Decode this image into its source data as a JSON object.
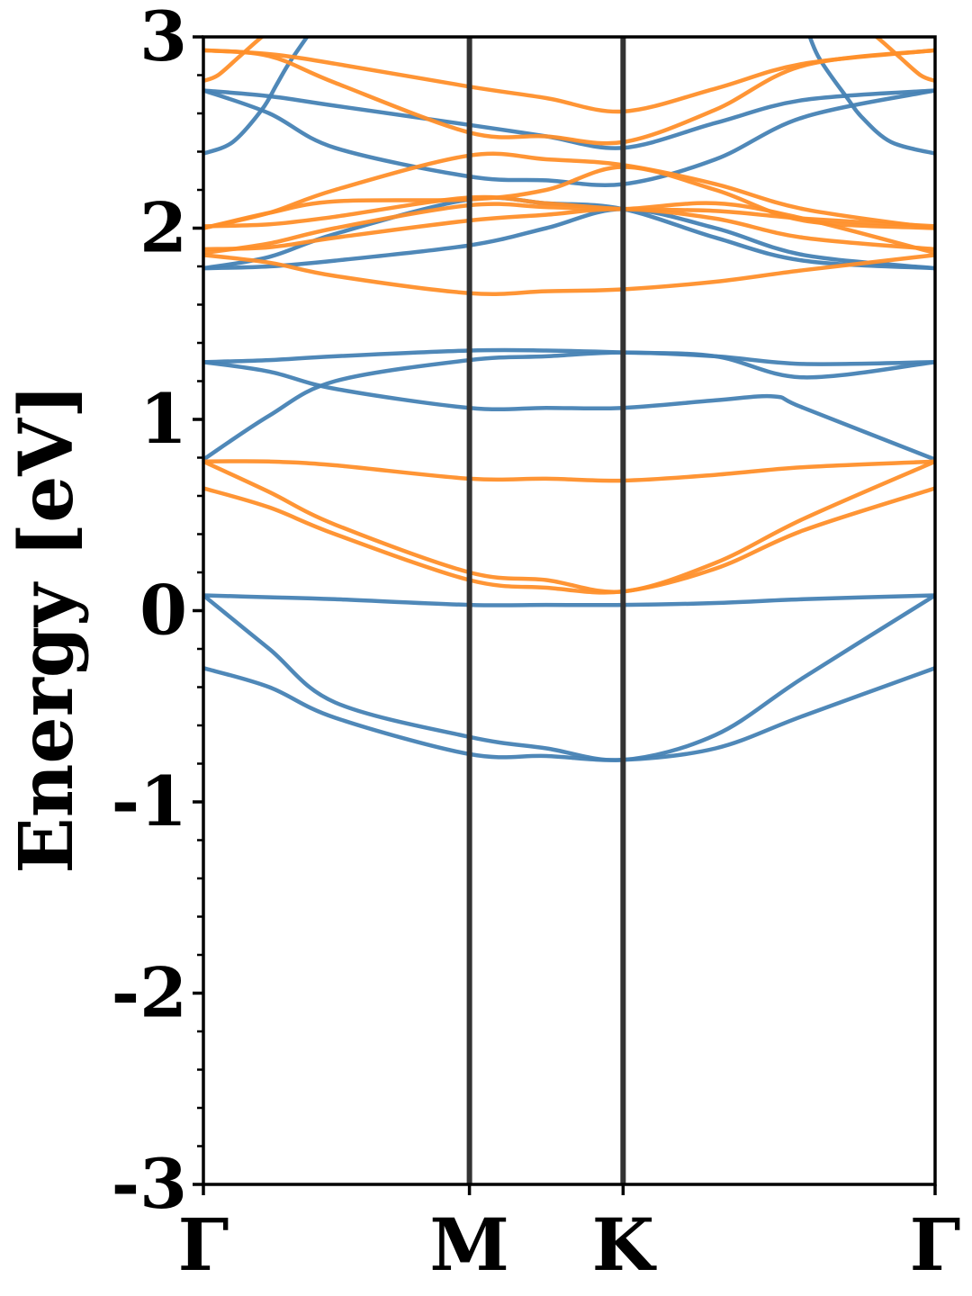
{
  "chart_data": {
    "type": "line",
    "title": "",
    "xlabel": "",
    "ylabel": "Energy [eV]",
    "ylim": [
      -3,
      3
    ],
    "yticks": [
      "-3",
      "-2",
      "-1",
      "0",
      "1",
      "2",
      "3"
    ],
    "x_range": [
      0,
      1
    ],
    "kpoints": [
      {
        "label": "Γ",
        "x": 0
      },
      {
        "label": "M",
        "x": 0.3636
      },
      {
        "label": "K",
        "x": 0.5736
      },
      {
        "label": "Γ",
        "x": 1
      }
    ],
    "colors": {
      "blue": "#4682b4",
      "orange": "#ff8f2a",
      "kline": "#333333"
    },
    "grid": false,
    "series": [
      {
        "color": "blue",
        "x": [
          0,
          0.09,
          0.18,
          0.3636,
          0.4686,
          0.5736,
          0.7,
          0.82,
          1
        ],
        "y": [
          0.08,
          0.07,
          0.06,
          0.03,
          0.03,
          0.03,
          0.04,
          0.06,
          0.08
        ]
      },
      {
        "color": "blue",
        "x": [
          0,
          0.09,
          0.18,
          0.3636,
          0.4686,
          0.5736,
          0.7,
          0.82,
          1
        ],
        "y": [
          0.08,
          -0.2,
          -0.48,
          -0.66,
          -0.72,
          -0.78,
          -0.65,
          -0.35,
          0.08
        ]
      },
      {
        "color": "blue",
        "x": [
          0,
          0.09,
          0.18,
          0.3636,
          0.4686,
          0.5736,
          0.7,
          0.82,
          1
        ],
        "y": [
          -0.3,
          -0.4,
          -0.56,
          -0.75,
          -0.76,
          -0.78,
          -0.72,
          -0.55,
          -0.3
        ]
      },
      {
        "color": "blue",
        "x": [
          0,
          0.09,
          0.18,
          0.3636,
          0.4686,
          0.5736,
          0.7,
          0.82,
          1
        ],
        "y": [
          0.79,
          1.02,
          1.2,
          1.31,
          1.33,
          1.35,
          1.33,
          1.29,
          1.3
        ]
      },
      {
        "color": "blue",
        "x": [
          0,
          0.09,
          0.18,
          0.3636,
          0.4686,
          0.5736,
          0.7,
          0.78,
          0.82,
          1
        ],
        "y": [
          1.3,
          1.25,
          1.16,
          1.06,
          1.06,
          1.06,
          1.1,
          1.12,
          1.06,
          0.79
        ]
      },
      {
        "color": "blue",
        "x": [
          0,
          0.09,
          0.18,
          0.3636,
          0.4686,
          0.5736,
          0.7,
          0.82,
          1
        ],
        "y": [
          1.3,
          1.31,
          1.33,
          1.36,
          1.36,
          1.35,
          1.33,
          1.22,
          1.3
        ]
      },
      {
        "color": "blue",
        "x": [
          0,
          0.09,
          0.18,
          0.3636,
          0.4686,
          0.5736,
          0.7,
          0.82,
          1
        ],
        "y": [
          1.79,
          1.8,
          1.83,
          1.91,
          2.0,
          2.1,
          2.0,
          1.86,
          1.79
        ]
      },
      {
        "color": "blue",
        "x": [
          0,
          0.09,
          0.18,
          0.3636,
          0.4686,
          0.5736,
          0.7,
          0.82,
          1
        ],
        "y": [
          1.79,
          1.85,
          1.97,
          2.15,
          2.13,
          2.1,
          1.95,
          1.83,
          1.79
        ]
      },
      {
        "color": "blue",
        "x": [
          0,
          0.09,
          0.18,
          0.3636,
          0.4686,
          0.5736,
          0.7,
          0.82,
          1
        ],
        "y": [
          2.72,
          2.6,
          2.42,
          2.27,
          2.25,
          2.23,
          2.36,
          2.58,
          2.72
        ]
      },
      {
        "color": "blue",
        "x": [
          0,
          0.09,
          0.18,
          0.3636,
          0.4686,
          0.5736,
          0.7,
          0.82,
          1
        ],
        "y": [
          2.72,
          2.69,
          2.64,
          2.54,
          2.48,
          2.42,
          2.55,
          2.67,
          2.72
        ]
      },
      {
        "color": "blue",
        "x": [
          0,
          0.04,
          0.08,
          0.1,
          0.12,
          0.16
        ],
        "y": [
          2.39,
          2.45,
          2.62,
          2.75,
          2.88,
          3.1
        ]
      },
      {
        "color": "blue",
        "x": [
          0.82,
          0.84,
          0.88,
          0.9,
          0.94,
          1
        ],
        "y": [
          3.1,
          2.9,
          2.68,
          2.58,
          2.45,
          2.39
        ]
      },
      {
        "color": "orange",
        "x": [
          0,
          0.09,
          0.18,
          0.3636,
          0.4686,
          0.5736,
          0.7,
          0.82,
          1
        ],
        "y": [
          0.78,
          0.78,
          0.76,
          0.69,
          0.69,
          0.68,
          0.71,
          0.75,
          0.78
        ]
      },
      {
        "color": "orange",
        "x": [
          0,
          0.09,
          0.18,
          0.3636,
          0.4686,
          0.5736,
          0.7,
          0.82,
          1
        ],
        "y": [
          0.78,
          0.62,
          0.45,
          0.2,
          0.16,
          0.1,
          0.25,
          0.48,
          0.78
        ]
      },
      {
        "color": "orange",
        "x": [
          0,
          0.09,
          0.18,
          0.3636,
          0.4686,
          0.5736,
          0.7,
          0.82,
          1
        ],
        "y": [
          0.64,
          0.54,
          0.4,
          0.16,
          0.12,
          0.1,
          0.22,
          0.42,
          0.64
        ]
      },
      {
        "color": "orange",
        "x": [
          0,
          0.09,
          0.18,
          0.3636,
          0.4686,
          0.5736,
          0.7,
          0.82,
          1
        ],
        "y": [
          1.86,
          1.82,
          1.75,
          1.66,
          1.67,
          1.68,
          1.72,
          1.78,
          1.86
        ]
      },
      {
        "color": "orange",
        "x": [
          0,
          0.09,
          0.18,
          0.3636,
          0.4686,
          0.5736,
          0.7,
          0.82,
          1
        ],
        "y": [
          1.87,
          1.92,
          2.0,
          2.12,
          2.11,
          2.1,
          2.13,
          2.05,
          1.87
        ]
      },
      {
        "color": "orange",
        "x": [
          0,
          0.09,
          0.18,
          0.3636,
          0.4686,
          0.5736,
          0.7,
          0.82,
          1
        ],
        "y": [
          1.89,
          1.9,
          1.95,
          2.04,
          2.07,
          2.1,
          2.05,
          1.95,
          1.89
        ]
      },
      {
        "color": "orange",
        "x": [
          0,
          0.09,
          0.18,
          0.3636,
          0.4686,
          0.5736,
          0.7,
          0.82,
          1
        ],
        "y": [
          2.01,
          2.02,
          2.06,
          2.16,
          2.13,
          2.1,
          2.09,
          2.05,
          2.01
        ]
      },
      {
        "color": "orange",
        "x": [
          0,
          0.09,
          0.18,
          0.3636,
          0.4686,
          0.5736,
          0.7,
          0.82,
          1
        ],
        "y": [
          2.0,
          2.08,
          2.14,
          2.15,
          2.2,
          2.32,
          2.2,
          2.04,
          2.0
        ]
      },
      {
        "color": "orange",
        "x": [
          0,
          0.09,
          0.18,
          0.3636,
          0.4686,
          0.5736,
          0.7,
          0.82,
          1
        ],
        "y": [
          2.0,
          2.08,
          2.2,
          2.38,
          2.36,
          2.33,
          2.23,
          2.1,
          2.0
        ]
      },
      {
        "color": "orange",
        "x": [
          0,
          0.09,
          0.18,
          0.3636,
          0.4686,
          0.5736,
          0.7,
          0.82,
          1
        ],
        "y": [
          2.93,
          2.9,
          2.76,
          2.5,
          2.48,
          2.45,
          2.62,
          2.85,
          2.93
        ]
      },
      {
        "color": "orange",
        "x": [
          0,
          0.09,
          0.18,
          0.3636,
          0.4686,
          0.5736,
          0.7,
          0.82,
          1
        ],
        "y": [
          2.93,
          2.91,
          2.86,
          2.74,
          2.68,
          2.61,
          2.73,
          2.86,
          2.93
        ]
      },
      {
        "color": "orange",
        "x": [
          0,
          0.02,
          0.05,
          0.08,
          0.1
        ],
        "y": [
          2.77,
          2.8,
          2.9,
          3.0,
          3.05
        ]
      },
      {
        "color": "orange",
        "x": [
          0.9,
          0.92,
          0.95,
          0.98,
          1
        ],
        "y": [
          3.05,
          3.0,
          2.9,
          2.8,
          2.77
        ]
      }
    ]
  }
}
